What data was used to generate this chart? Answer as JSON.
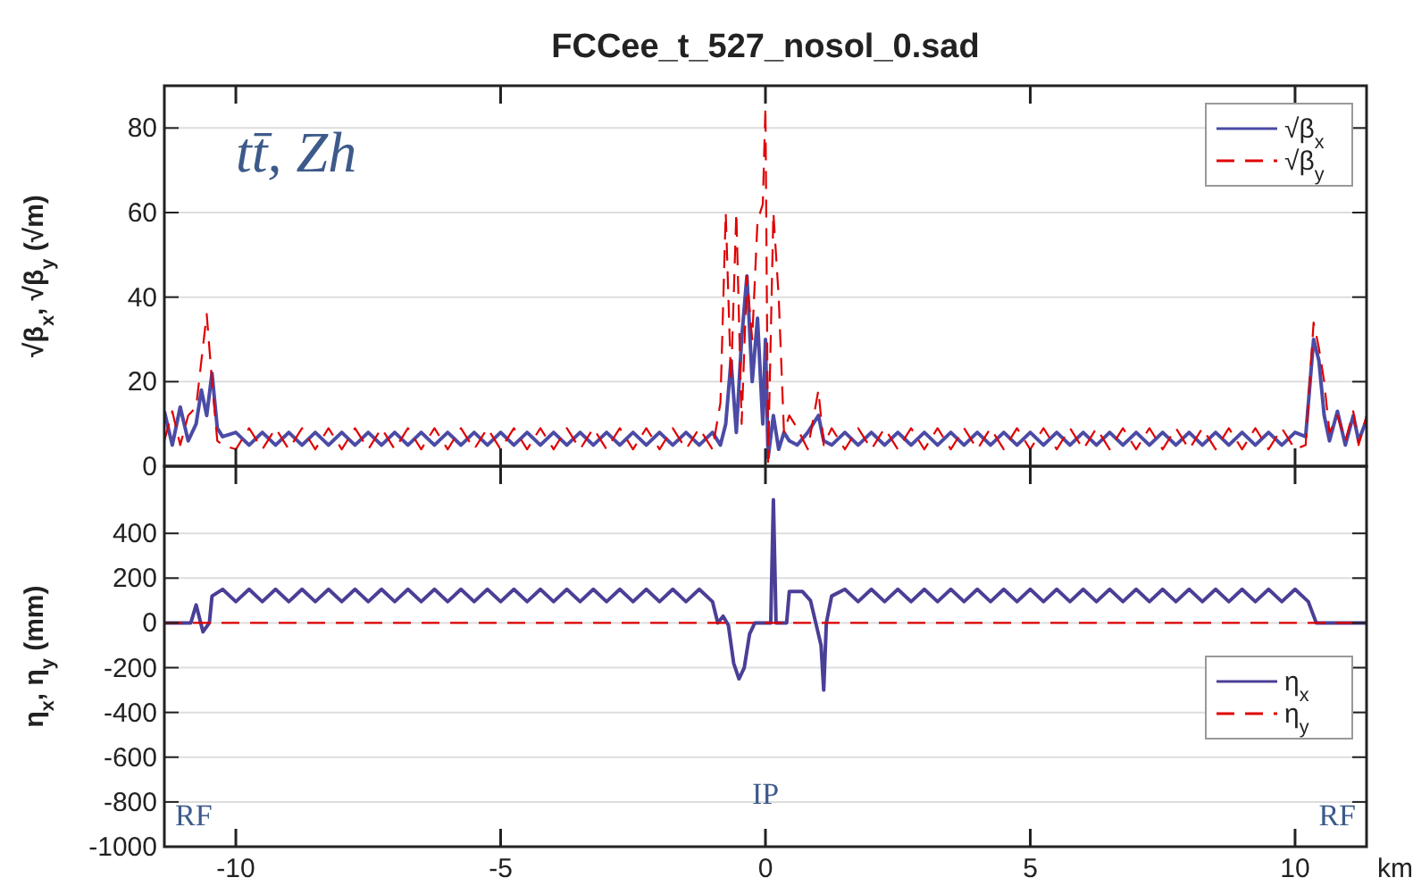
{
  "chart_data": [
    {
      "type": "line",
      "title": "FCCee_t_527_nosol_0.sad",
      "ylabel": "√β$_{x}$, √β$_{y}$ (√m)",
      "annotations": [
        "tt̄, Zh"
      ],
      "xlim": [
        -11.35,
        11.35
      ],
      "xticks": [
        -10,
        -5,
        0,
        5,
        10
      ],
      "ylim": [
        0,
        90
      ],
      "yticks": [
        0,
        20,
        40,
        60,
        80
      ],
      "grid": "y",
      "legend": "top right",
      "tick_labels": "y",
      "x": [
        -11.35,
        -11.2,
        -11.05,
        -10.9,
        -10.75,
        -10.65,
        -10.55,
        -10.45,
        -10.35,
        -10.25,
        -10,
        -9.75,
        -9.5,
        -9.25,
        -9,
        -8.75,
        -8.5,
        -8.25,
        -8,
        -7.75,
        -7.5,
        -7.25,
        -7,
        -6.75,
        -6.5,
        -6.25,
        -6,
        -5.75,
        -5.5,
        -5.25,
        -5,
        -4.75,
        -4.5,
        -4.25,
        -4,
        -3.75,
        -3.5,
        -3.25,
        -3,
        -2.75,
        -2.5,
        -2.25,
        -2,
        -1.75,
        -1.5,
        -1.25,
        -1,
        -0.85,
        -0.75,
        -0.65,
        -0.55,
        -0.45,
        -0.35,
        -0.25,
        -0.15,
        -0.05,
        0,
        0.05,
        0.15,
        0.25,
        0.35,
        0.45,
        0.6,
        0.8,
        1.0,
        1.1,
        1.25,
        1.5,
        1.75,
        2,
        2.25,
        2.5,
        2.75,
        3,
        3.25,
        3.5,
        3.75,
        4,
        4.25,
        4.5,
        4.75,
        5,
        5.25,
        5.5,
        5.75,
        6,
        6.25,
        6.5,
        6.75,
        7,
        7.25,
        7.5,
        7.75,
        8,
        8.25,
        8.5,
        8.75,
        9,
        9.25,
        9.5,
        9.75,
        10,
        10.2,
        10.35,
        10.45,
        10.55,
        10.65,
        10.8,
        10.95,
        11.1,
        11.2,
        11.35
      ],
      "series": [
        {
          "name": "√β$_{x}$",
          "color": "#4b4ba6",
          "line_style": "solid",
          "values": [
            13,
            5,
            14,
            6,
            10,
            18,
            12,
            22,
            9,
            7,
            8,
            5,
            8,
            5,
            8,
            5,
            8,
            5,
            8,
            5,
            8,
            5,
            8,
            5,
            8,
            5,
            8,
            5,
            8,
            5,
            8,
            5,
            8,
            5,
            8,
            5,
            8,
            5,
            8,
            5,
            8,
            5,
            8,
            5,
            8,
            5,
            8,
            5,
            10,
            25,
            8,
            30,
            45,
            20,
            35,
            10,
            30,
            2,
            12,
            4,
            8,
            6,
            5,
            8,
            12,
            6,
            5,
            8,
            5,
            8,
            5,
            8,
            5,
            8,
            5,
            8,
            5,
            8,
            5,
            8,
            5,
            8,
            5,
            8,
            5,
            8,
            5,
            8,
            5,
            8,
            5,
            8,
            5,
            8,
            5,
            8,
            5,
            8,
            5,
            8,
            5,
            8,
            7,
            30,
            25,
            12,
            6,
            13,
            5,
            12,
            6,
            11
          ]
        },
        {
          "name": "√β$_{y}$",
          "color": "#e00000",
          "line_style": "dashed",
          "values": [
            6,
            13,
            5,
            12,
            14,
            25,
            36,
            20,
            6,
            5,
            4,
            9,
            4,
            9,
            4,
            9,
            4,
            9,
            4,
            9,
            4,
            9,
            4,
            9,
            4,
            9,
            4,
            9,
            4,
            9,
            4,
            9,
            4,
            9,
            4,
            9,
            4,
            9,
            4,
            9,
            4,
            9,
            4,
            9,
            4,
            9,
            4,
            15,
            60,
            20,
            60,
            10,
            45,
            30,
            58,
            62,
            85,
            1,
            60,
            40,
            8,
            12,
            9,
            4,
            18,
            5,
            9,
            4,
            9,
            4,
            9,
            4,
            9,
            4,
            9,
            4,
            9,
            4,
            9,
            4,
            9,
            4,
            9,
            4,
            9,
            4,
            9,
            4,
            9,
            4,
            9,
            4,
            9,
            4,
            9,
            4,
            9,
            4,
            9,
            4,
            9,
            4,
            5,
            34,
            28,
            20,
            8,
            12,
            6,
            13,
            5,
            12
          ]
        }
      ]
    },
    {
      "type": "line",
      "ylabel": "η$_{x}$, η$_{y}$ (mm)",
      "xlabel": "km",
      "xlim": [
        -11.35,
        11.35
      ],
      "xticks": [
        -10,
        -5,
        0,
        5,
        10
      ],
      "ylim": [
        -1000,
        700
      ],
      "yticks": [
        -1000,
        -800,
        -600,
        -400,
        -200,
        0,
        200,
        400
      ],
      "grid": "y",
      "legend": "right",
      "annotations": [
        "RF",
        "IP",
        "RF"
      ],
      "series": [
        {
          "name": "η$_{x}$",
          "color": "#4a3f96",
          "line_style": "solid",
          "x": [
            -11.35,
            -10.85,
            -10.75,
            -10.62,
            -10.5,
            -10.45,
            -10.25,
            -10,
            -9.75,
            -9.5,
            -9.25,
            -9,
            -8.75,
            -8.5,
            -8.25,
            -8,
            -7.75,
            -7.5,
            -7.25,
            -7,
            -6.75,
            -6.5,
            -6.25,
            -6,
            -5.75,
            -5.5,
            -5.25,
            -5,
            -4.75,
            -4.5,
            -4.25,
            -4,
            -3.75,
            -3.5,
            -3.25,
            -3,
            -2.75,
            -2.5,
            -2.25,
            -2,
            -1.75,
            -1.5,
            -1.25,
            -1,
            -0.9,
            -0.8,
            -0.7,
            -0.6,
            -0.5,
            -0.4,
            -0.3,
            -0.2,
            -0.1,
            0,
            0.1,
            0.15,
            0.2,
            0.3,
            0.4,
            0.45,
            0.55,
            0.7,
            0.85,
            0.95,
            1.05,
            1.1,
            1.15,
            1.25,
            1.5,
            1.75,
            2,
            2.25,
            2.5,
            2.75,
            3,
            3.25,
            3.5,
            3.75,
            4,
            4.25,
            4.5,
            4.75,
            5,
            5.25,
            5.5,
            5.75,
            6,
            6.25,
            6.5,
            6.75,
            7,
            7.25,
            7.5,
            7.75,
            8,
            8.25,
            8.5,
            8.75,
            9,
            9.25,
            9.5,
            9.75,
            10,
            10.25,
            10.4,
            10.6,
            11.35
          ],
          "values": [
            0,
            0,
            80,
            -40,
            0,
            120,
            150,
            95,
            150,
            95,
            150,
            95,
            150,
            95,
            150,
            95,
            150,
            95,
            150,
            95,
            150,
            95,
            150,
            95,
            150,
            95,
            150,
            95,
            150,
            95,
            150,
            95,
            150,
            95,
            150,
            95,
            150,
            95,
            150,
            95,
            150,
            95,
            150,
            95,
            0,
            30,
            -10,
            -180,
            -250,
            -200,
            -50,
            0,
            0,
            0,
            0,
            550,
            0,
            0,
            0,
            140,
            140,
            140,
            100,
            0,
            -100,
            -300,
            0,
            120,
            150,
            95,
            150,
            95,
            150,
            95,
            150,
            95,
            150,
            95,
            150,
            95,
            150,
            95,
            150,
            95,
            150,
            95,
            150,
            95,
            150,
            95,
            150,
            95,
            150,
            95,
            150,
            95,
            150,
            95,
            150,
            95,
            150,
            95,
            150,
            95,
            0,
            0,
            0
          ]
        },
        {
          "name": "η$_{y}$",
          "color": "#e00000",
          "line_style": "dashed",
          "x": [
            -11.35,
            11.35
          ],
          "values": [
            0,
            0
          ]
        }
      ]
    }
  ]
}
